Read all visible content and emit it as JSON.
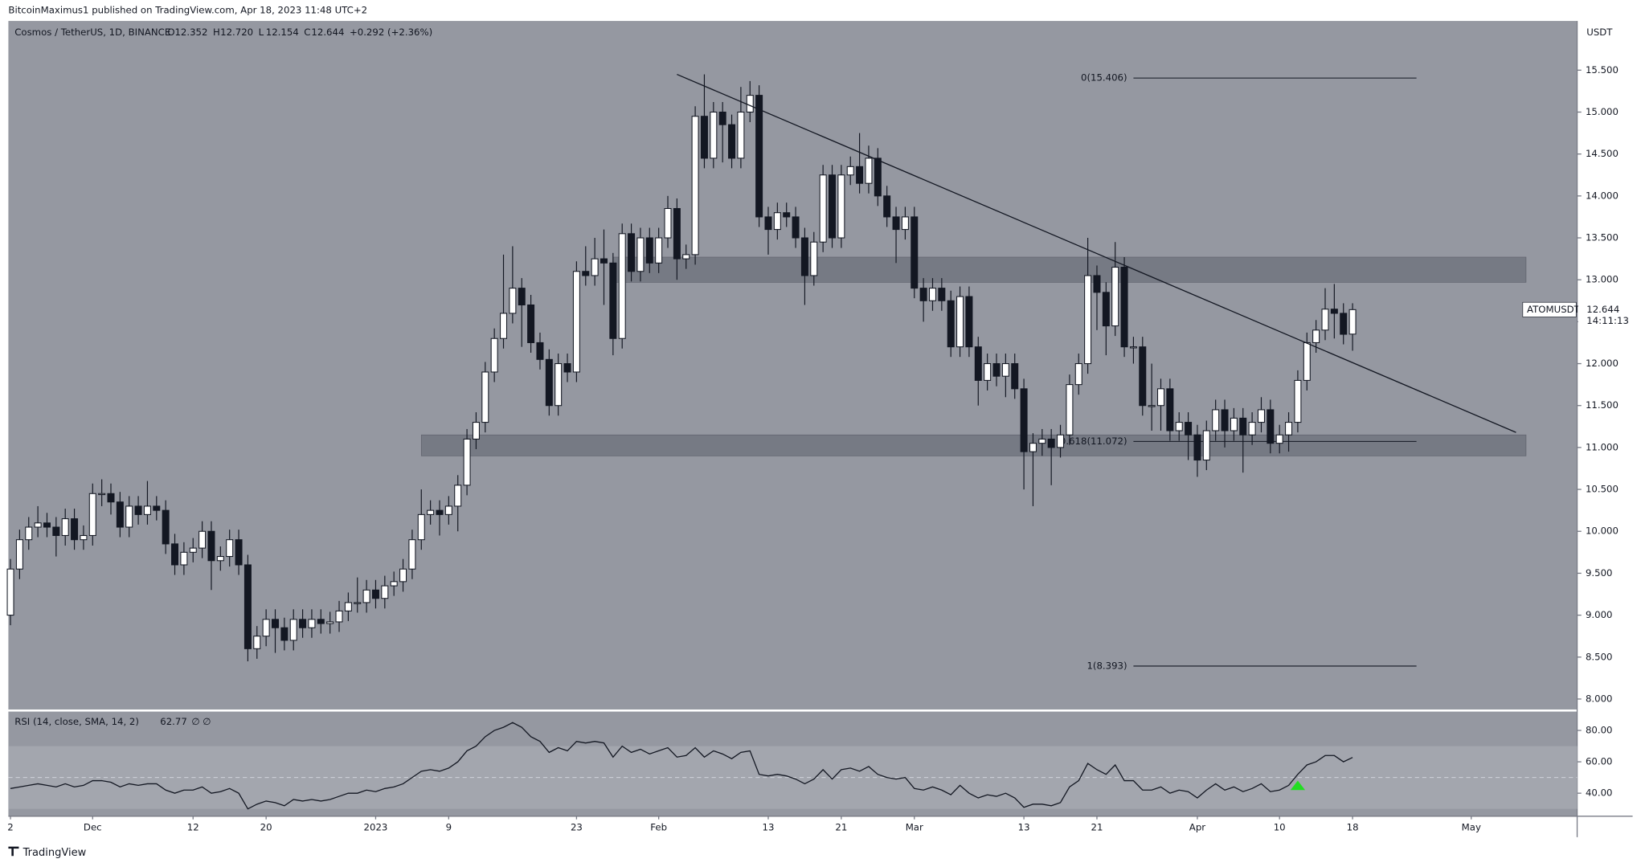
{
  "chart_data": {
    "type": "candlestick",
    "title": "BitcoinMaximus1 published on TradingView.com, Apr 18, 2023 11:48 UTC+2",
    "currency": "USDT",
    "footer": "TradingView",
    "legend": {
      "symbol": "Cosmos / TetherUS, 1D, BINANCE",
      "ohlc": [
        {
          "label": "O",
          "value": "12.352"
        },
        {
          "label": "H",
          "value": "12.720"
        },
        {
          "label": "L",
          "value": "12.154"
        },
        {
          "label": "C",
          "value": "12.644"
        }
      ],
      "change": "+0.292 (+2.36%)"
    },
    "last_price": {
      "symbol": "ATOMUSDT",
      "value": 12.644,
      "label": "12.644",
      "countdown": "14:11:13"
    },
    "up_color": "#ffffff",
    "down_color": "#131722",
    "open": [
      9.0,
      9.55,
      9.9,
      10.05,
      10.1,
      10.05,
      9.95,
      10.15,
      9.9,
      9.95,
      10.45,
      10.45,
      10.35,
      10.05,
      10.3,
      10.2,
      10.3,
      10.25,
      9.85,
      9.6,
      9.75,
      9.8,
      10.0,
      9.65,
      9.7,
      9.9,
      9.6,
      8.6,
      8.75,
      8.95,
      8.85,
      8.7,
      8.95,
      8.85,
      8.95,
      8.9,
      8.92,
      9.05,
      9.15,
      9.15,
      9.3,
      9.2,
      9.35,
      9.4,
      9.55,
      9.9,
      10.2,
      10.25,
      10.2,
      10.3,
      10.55,
      11.1,
      11.3,
      11.9,
      12.3,
      12.6,
      12.9,
      12.7,
      12.25,
      12.05,
      11.5,
      12.0,
      11.9,
      13.1,
      13.05,
      13.25,
      13.2,
      12.3,
      13.55,
      13.1,
      13.5,
      13.2,
      13.5,
      13.85,
      13.25,
      13.3,
      14.95,
      14.45,
      15.0,
      14.85,
      14.45,
      15.0,
      15.2,
      13.75,
      13.6,
      13.8,
      13.75,
      13.5,
      13.05,
      13.45,
      14.25,
      13.5,
      14.25,
      14.35,
      14.15,
      14.45,
      14.0,
      13.75,
      13.6,
      13.75,
      12.9,
      12.75,
      12.9,
      12.75,
      12.2,
      12.8,
      12.2,
      11.8,
      12.0,
      11.85,
      12.0,
      11.7,
      10.95,
      11.05,
      11.1,
      11.0,
      11.15,
      11.75,
      12.0,
      13.05,
      12.85,
      12.45,
      13.15,
      12.2,
      12.2,
      11.5,
      11.5,
      11.7,
      11.2,
      11.3,
      11.15,
      10.85,
      11.2,
      11.45,
      11.2,
      11.35,
      11.15,
      11.3,
      11.45,
      11.05,
      11.15,
      11.3,
      11.8,
      12.25,
      12.4,
      12.65,
      12.6,
      12.352
    ],
    "high": [
      9.67,
      10.02,
      10.17,
      10.3,
      10.22,
      10.17,
      10.27,
      10.27,
      10.07,
      10.57,
      10.62,
      10.57,
      10.47,
      10.42,
      10.42,
      10.6,
      10.42,
      10.37,
      9.97,
      9.87,
      9.92,
      10.12,
      10.12,
      9.82,
      10.02,
      10.02,
      9.72,
      8.87,
      9.07,
      9.07,
      8.97,
      9.07,
      9.07,
      9.07,
      9.07,
      9.04,
      9.17,
      9.27,
      9.45,
      9.42,
      9.42,
      9.47,
      9.52,
      9.67,
      10.02,
      10.5,
      10.37,
      10.37,
      10.42,
      10.67,
      11.22,
      11.42,
      12.02,
      12.42,
      13.3,
      13.4,
      13.02,
      12.82,
      12.37,
      12.17,
      12.12,
      12.12,
      13.22,
      13.4,
      13.5,
      13.6,
      13.32,
      13.67,
      13.67,
      13.62,
      13.62,
      13.62,
      14.0,
      13.97,
      13.42,
      15.07,
      15.45,
      15.12,
      15.12,
      14.97,
      15.3,
      15.37,
      15.32,
      13.87,
      13.92,
      13.92,
      13.87,
      13.62,
      13.57,
      14.37,
      14.37,
      14.37,
      14.47,
      14.75,
      14.6,
      14.57,
      14.12,
      13.87,
      13.87,
      13.87,
      13.02,
      13.02,
      13.02,
      12.87,
      12.92,
      12.92,
      12.32,
      12.12,
      12.12,
      12.12,
      12.12,
      11.82,
      11.17,
      11.22,
      11.22,
      11.27,
      11.87,
      12.12,
      13.5,
      13.17,
      12.97,
      13.45,
      13.27,
      12.32,
      12.32,
      12.0,
      11.82,
      11.82,
      11.42,
      11.42,
      11.27,
      11.32,
      11.57,
      11.57,
      11.47,
      11.47,
      11.42,
      11.6,
      11.57,
      11.27,
      11.42,
      11.92,
      12.37,
      12.52,
      12.9,
      12.95,
      12.72,
      12.72
    ],
    "low": [
      8.88,
      9.43,
      9.78,
      9.93,
      9.93,
      9.7,
      9.83,
      9.78,
      9.78,
      9.83,
      10.3,
      10.2,
      9.93,
      9.93,
      10.08,
      10.08,
      10.13,
      9.73,
      9.48,
      9.48,
      9.63,
      9.68,
      9.3,
      9.53,
      9.58,
      9.48,
      8.45,
      8.48,
      8.63,
      8.55,
      8.58,
      8.58,
      8.73,
      8.73,
      8.78,
      8.78,
      8.8,
      8.93,
      9.03,
      9.03,
      9.08,
      9.08,
      9.23,
      9.28,
      9.43,
      9.78,
      10.08,
      9.95,
      10.08,
      10.0,
      10.43,
      10.98,
      11.18,
      11.78,
      12.18,
      12.48,
      12.2,
      12.13,
      11.93,
      11.38,
      11.38,
      11.78,
      11.78,
      12.93,
      12.93,
      12.7,
      12.1,
      12.18,
      12.98,
      12.98,
      13.08,
      13.08,
      13.38,
      13.0,
      13.13,
      13.18,
      14.33,
      14.33,
      14.4,
      14.33,
      14.33,
      14.88,
      13.63,
      13.3,
      13.48,
      13.63,
      13.38,
      12.7,
      12.93,
      13.33,
      13.38,
      13.38,
      14.13,
      14.03,
      14.03,
      13.88,
      13.63,
      13.2,
      13.48,
      12.78,
      12.5,
      12.63,
      12.63,
      12.08,
      12.08,
      12.08,
      11.5,
      11.68,
      11.73,
      11.6,
      11.58,
      10.5,
      10.3,
      10.9,
      10.55,
      10.88,
      11.03,
      11.63,
      11.88,
      12.4,
      12.1,
      12.33,
      12.08,
      12.0,
      11.38,
      11.2,
      11.2,
      11.08,
      11.08,
      10.85,
      10.65,
      10.73,
      11.08,
      11.0,
      11.08,
      10.7,
      11.03,
      11.18,
      10.93,
      10.93,
      10.95,
      11.18,
      11.68,
      12.13,
      12.28,
      12.3,
      12.23,
      12.154
    ],
    "close": [
      9.55,
      9.9,
      10.05,
      10.1,
      10.05,
      9.95,
      10.15,
      9.9,
      9.95,
      10.45,
      10.45,
      10.35,
      10.05,
      10.3,
      10.2,
      10.3,
      10.25,
      9.85,
      9.6,
      9.75,
      9.8,
      10.0,
      9.65,
      9.7,
      9.9,
      9.6,
      8.6,
      8.75,
      8.95,
      8.85,
      8.7,
      8.95,
      8.85,
      8.95,
      8.9,
      8.92,
      9.05,
      9.15,
      9.15,
      9.3,
      9.2,
      9.35,
      9.4,
      9.55,
      9.9,
      10.2,
      10.25,
      10.2,
      10.3,
      10.55,
      11.1,
      11.3,
      11.9,
      12.3,
      12.6,
      12.9,
      12.7,
      12.25,
      12.05,
      11.5,
      12.0,
      11.9,
      13.1,
      13.05,
      13.25,
      13.2,
      12.3,
      13.55,
      13.1,
      13.5,
      13.2,
      13.5,
      13.85,
      13.25,
      13.3,
      14.95,
      14.45,
      15.0,
      14.85,
      14.45,
      15.0,
      15.2,
      13.75,
      13.6,
      13.8,
      13.75,
      13.5,
      13.05,
      13.45,
      14.25,
      13.5,
      14.25,
      14.35,
      14.15,
      14.45,
      14.0,
      13.75,
      13.6,
      13.75,
      12.9,
      12.75,
      12.9,
      12.75,
      12.2,
      12.8,
      12.2,
      11.8,
      12.0,
      11.85,
      12.0,
      11.7,
      10.95,
      11.05,
      11.1,
      11.0,
      11.15,
      11.75,
      12.0,
      13.05,
      12.85,
      12.45,
      13.15,
      12.2,
      12.2,
      11.5,
      11.5,
      11.7,
      11.2,
      11.3,
      11.15,
      10.85,
      11.2,
      11.45,
      11.2,
      11.35,
      11.15,
      11.3,
      11.45,
      11.05,
      11.15,
      11.3,
      11.8,
      12.25,
      12.4,
      12.65,
      12.6,
      12.35,
      12.644
    ],
    "xlim": [
      -0.23,
      171.6
    ],
    "xticks": [
      {
        "value": 0,
        "label": "2"
      },
      {
        "value": 9,
        "label": "Dec"
      },
      {
        "value": 20,
        "label": "12"
      },
      {
        "value": 28,
        "label": "20"
      },
      {
        "value": 40,
        "label": "2023"
      },
      {
        "value": 48,
        "label": "9"
      },
      {
        "value": 62,
        "label": "23"
      },
      {
        "value": 71,
        "label": "Feb"
      },
      {
        "value": 83,
        "label": "13"
      },
      {
        "value": 91,
        "label": "21"
      },
      {
        "value": 99,
        "label": "Mar"
      },
      {
        "value": 111,
        "label": "13"
      },
      {
        "value": 119,
        "label": "21"
      },
      {
        "value": 130,
        "label": "Apr"
      },
      {
        "value": 139,
        "label": "10"
      },
      {
        "value": 147,
        "label": "18"
      },
      {
        "value": 160,
        "label": "May"
      }
    ],
    "ylim": [
      7.875,
      16.087
    ],
    "yticks": [
      {
        "value": 8,
        "label": "8.000"
      },
      {
        "value": 8.5,
        "label": "8.500"
      },
      {
        "value": 9,
        "label": "9.000"
      },
      {
        "value": 9.5,
        "label": "9.500"
      },
      {
        "value": 10,
        "label": "10.000"
      },
      {
        "value": 10.5,
        "label": "10.500"
      },
      {
        "value": 11,
        "label": "11.000"
      },
      {
        "value": 11.5,
        "label": "11.500"
      },
      {
        "value": 12,
        "label": "12.000"
      },
      {
        "value": 12.5,
        "label": "12.500"
      },
      {
        "value": 13,
        "label": "13.000"
      },
      {
        "value": 13.5,
        "label": "13.500"
      },
      {
        "value": 14,
        "label": "14.000"
      },
      {
        "value": 14.5,
        "label": "14.500"
      },
      {
        "value": 15,
        "label": "15.000"
      },
      {
        "value": 15.5,
        "label": "15.500"
      }
    ],
    "zones": [
      {
        "range": [
          12.97,
          13.27
        ],
        "start": 66,
        "end": 166
      },
      {
        "range": [
          10.9,
          11.15
        ],
        "start": 45,
        "end": 166
      }
    ],
    "trendline": {
      "points": [
        [
          73,
          15.45
        ],
        [
          164.9,
          11.18
        ]
      ]
    },
    "fib": {
      "start": 123,
      "end": 154,
      "levels": [
        {
          "label": "0(15.406)",
          "value": 15.406
        },
        {
          "label": "0.618(11.072)",
          "value": 11.072
        },
        {
          "label": "1(8.393)",
          "value": 8.393
        }
      ]
    },
    "rsi": {
      "label": "RSI (14, close, SMA, 14, 2)",
      "value_label": "62.77",
      "extra": "∅ ∅",
      "color": "#131722",
      "values": [
        43,
        44,
        45,
        46,
        45,
        44,
        46,
        44,
        45,
        48,
        48,
        47,
        44,
        46,
        45,
        46,
        46,
        42,
        40,
        42,
        42,
        44,
        40,
        41,
        43,
        40,
        30,
        33,
        35,
        34,
        32,
        36,
        35,
        36,
        35,
        36,
        38,
        40,
        40,
        42,
        41,
        43,
        44,
        46,
        50,
        54,
        55,
        54,
        56,
        60,
        67,
        70,
        76,
        80,
        82,
        85,
        82,
        76,
        73,
        66,
        69,
        67,
        73,
        72,
        73,
        72,
        63,
        70,
        66,
        68,
        65,
        67,
        69,
        63,
        64,
        69,
        63,
        67,
        65,
        62,
        66,
        67,
        52,
        51,
        52,
        51,
        49,
        46,
        49,
        55,
        49,
        55,
        56,
        54,
        57,
        52,
        50,
        49,
        50,
        43,
        42,
        44,
        42,
        39,
        45,
        40,
        37,
        39,
        38,
        40,
        37,
        31,
        33,
        33,
        32,
        34,
        44,
        48,
        59,
        55,
        52,
        58,
        48,
        48,
        42,
        42,
        44,
        40,
        42,
        41,
        37,
        42,
        46,
        42,
        44,
        41,
        43,
        46,
        41,
        42,
        45,
        52,
        58,
        60,
        64,
        64,
        60,
        62.77
      ],
      "ylim": [
        25.33,
        92
      ],
      "band": [
        30,
        70
      ],
      "midline": 50,
      "signal_index": 141,
      "signal_color": "#22dd22",
      "yticks": [
        {
          "value": 40,
          "label": "40.00"
        },
        {
          "value": 60,
          "label": "60.00"
        },
        {
          "value": 80,
          "label": "80.00"
        }
      ]
    }
  }
}
